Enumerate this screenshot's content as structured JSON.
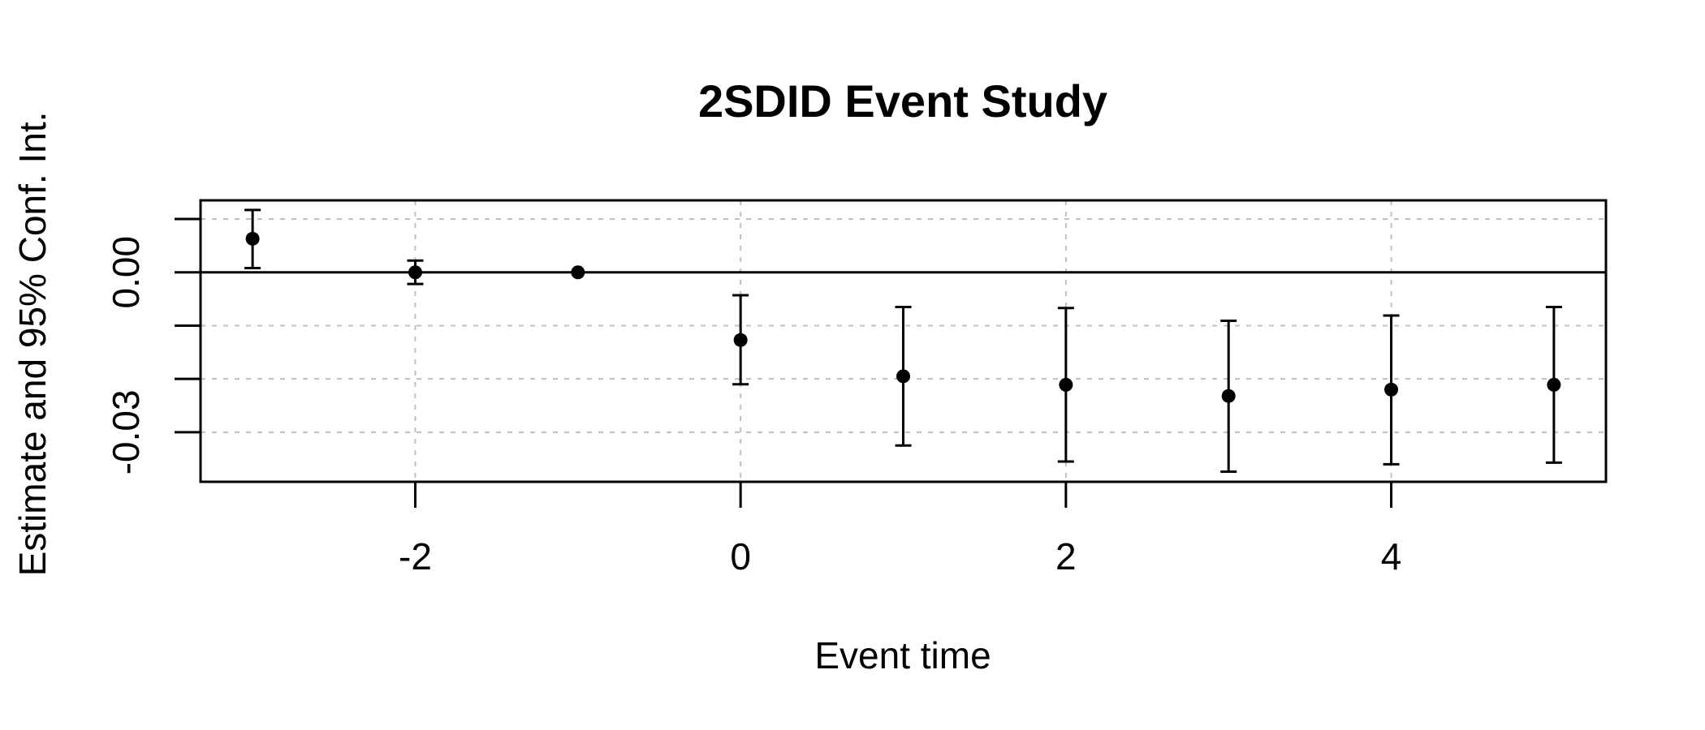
{
  "chart_data": {
    "type": "scatter",
    "title": "2SDID Event Study",
    "xlabel": "Event time",
    "ylabel": "Estimate and 95% Conf. Int.",
    "xlim": [
      -3.32,
      5.32
    ],
    "ylim": [
      -0.0393,
      0.0135
    ],
    "xticks": [
      -2,
      0,
      2,
      4
    ],
    "xtick_labels": [
      "-2",
      "0",
      "2",
      "4"
    ],
    "yticks": [
      0.01,
      0.0,
      -0.01,
      -0.02,
      -0.03
    ],
    "ytick_labels": [
      "",
      "0.00",
      "",
      "",
      "-0.03"
    ],
    "grid": true,
    "reference_line_y": 0,
    "points": [
      {
        "x": -3,
        "y": 0.0063,
        "lower": 0.0008,
        "upper": 0.0117
      },
      {
        "x": -2,
        "y": 0.0,
        "lower": -0.0022,
        "upper": 0.0022
      },
      {
        "x": -1,
        "y": 0.0,
        "lower": 0.0,
        "upper": 0.0
      },
      {
        "x": 0,
        "y": -0.0127,
        "lower": -0.021,
        "upper": -0.0043
      },
      {
        "x": 1,
        "y": -0.0195,
        "lower": -0.0325,
        "upper": -0.0065
      },
      {
        "x": 2,
        "y": -0.0211,
        "lower": -0.0355,
        "upper": -0.0067
      },
      {
        "x": 3,
        "y": -0.0232,
        "lower": -0.0374,
        "upper": -0.0091
      },
      {
        "x": 4,
        "y": -0.022,
        "lower": -0.036,
        "upper": -0.0081
      },
      {
        "x": 5,
        "y": -0.0211,
        "lower": -0.0357,
        "upper": -0.0065
      }
    ]
  }
}
